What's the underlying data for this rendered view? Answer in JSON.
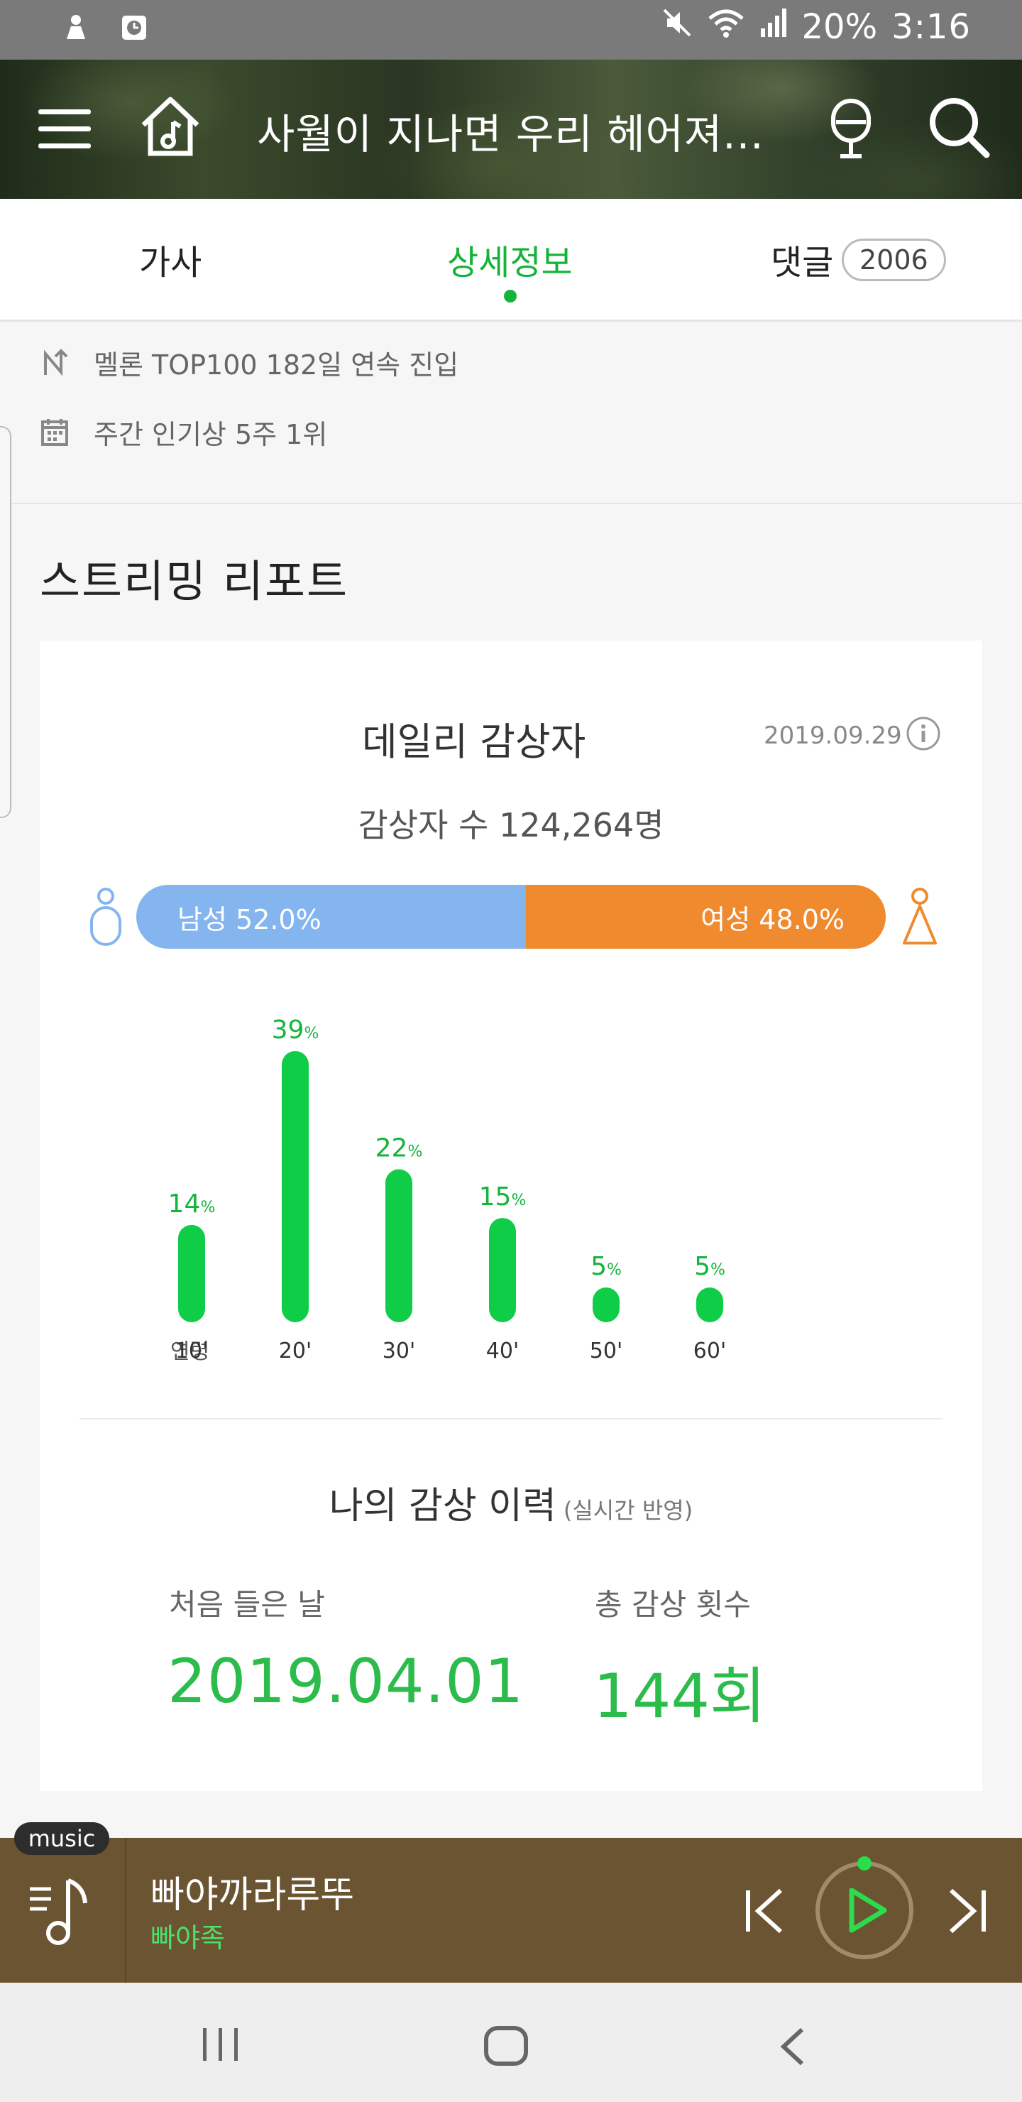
{
  "status_bar": {
    "battery": "20%",
    "time": "3:16",
    "left_icons": [
      "notification-icon",
      "clock-icon"
    ],
    "right_icons": [
      "mute-icon",
      "wifi-icon",
      "signal-icon"
    ]
  },
  "header": {
    "title": "사월이 지나면 우리 헤어져...",
    "icons": [
      "menu-icon",
      "home-music-icon",
      "mic-icon",
      "search-icon"
    ]
  },
  "tabs": {
    "lyrics": "가사",
    "details": "상세정보",
    "comments": "댓글",
    "comment_count": "2006"
  },
  "info": {
    "top100": "멜론 TOP100 182일 연속 진입",
    "weekly": "주간 인기상 5주 1위"
  },
  "report": {
    "section_title": "스트리밍 리포트",
    "daily_title": "데일리 감상자",
    "date": "2019.09.29",
    "listeners": "감상자 수 124,264명",
    "male_label": "남성 52.0%",
    "female_label": "여성 48.0%",
    "male_share": 0.52,
    "age_axis_label": "연령"
  },
  "chart_data": {
    "type": "bar",
    "categories": [
      "10'",
      "20'",
      "30'",
      "40'",
      "50'",
      "60'"
    ],
    "values": [
      14,
      39,
      22,
      15,
      5,
      5
    ],
    "value_suffix": "%",
    "xlabel": "연령",
    "ylabel": "",
    "ylim": [
      0,
      39
    ],
    "colors": {
      "bar": "#0fcd47",
      "label": "#13b53c"
    }
  },
  "history": {
    "title": "나의 감상 이력",
    "subtitle": "(실시간 반영)",
    "first_label": "처음 들은 날",
    "first_value": "2019.04.01",
    "total_label": "총 감상 횟수",
    "total_value": "144회"
  },
  "player": {
    "badge": "music",
    "track_title": "빠야까라루뚜",
    "artist": "빠야족",
    "icons": [
      "playlist-music-icon",
      "previous-icon",
      "play-icon",
      "next-icon"
    ]
  },
  "nav": {
    "icons": [
      "recent-apps-icon",
      "home-icon",
      "back-icon"
    ]
  },
  "colors": {
    "accent": "#15b33a",
    "male": "#85b5ee",
    "female": "#f08a2e",
    "player_bg": "#6b5431"
  }
}
